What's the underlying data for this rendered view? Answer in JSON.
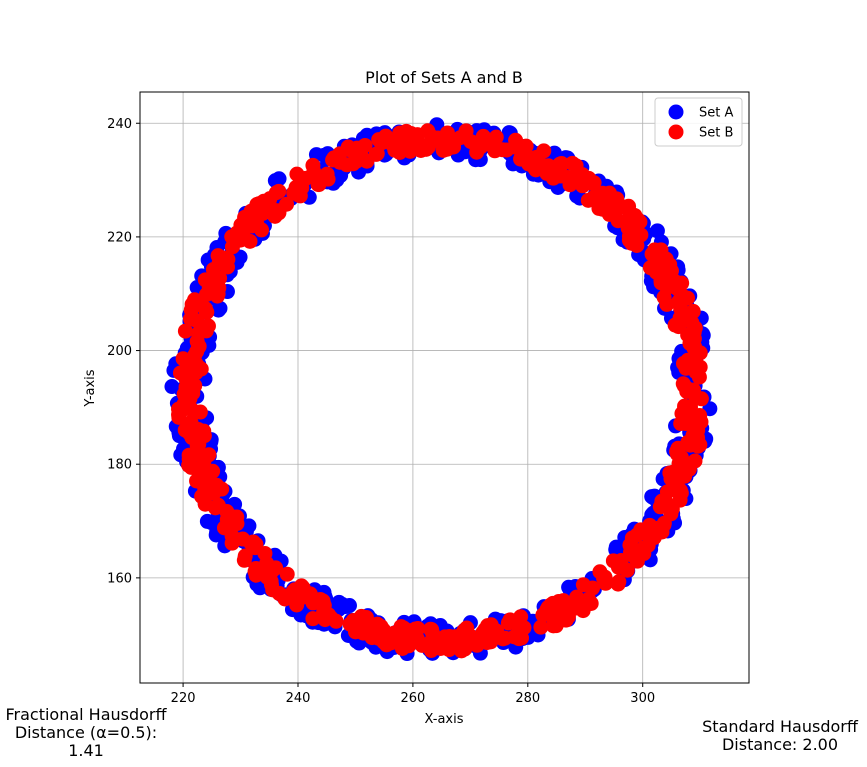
{
  "chart_data": {
    "type": "scatter",
    "title": "Plot of Sets A and B",
    "xlabel": "X-axis",
    "ylabel": "Y-axis",
    "xlim": [
      212.5,
      318.5
    ],
    "ylim": [
      141.5,
      245.5
    ],
    "xticks": [
      220,
      240,
      260,
      280,
      300
    ],
    "yticks": [
      160,
      180,
      200,
      220,
      240
    ],
    "grid": true,
    "legend_position": "top-right",
    "series": [
      {
        "name": "Set A",
        "color": "#0000ff",
        "shape": "ring",
        "center": [
          265,
          193
        ],
        "inner_radius": 41,
        "outer_radius": 47,
        "approx_points": 600
      },
      {
        "name": "Set B",
        "color": "#ff0000",
        "shape": "ring",
        "center": [
          265,
          193
        ],
        "inner_radius": 42,
        "outer_radius": 46,
        "approx_points": 600
      }
    ]
  },
  "annotations": {
    "left_lines": [
      "Fractional Hausdorff",
      "Distance (α=0.5):",
      "1.41"
    ],
    "right_lines": [
      "Standard Hausdorff",
      "Distance: 2.00"
    ]
  }
}
